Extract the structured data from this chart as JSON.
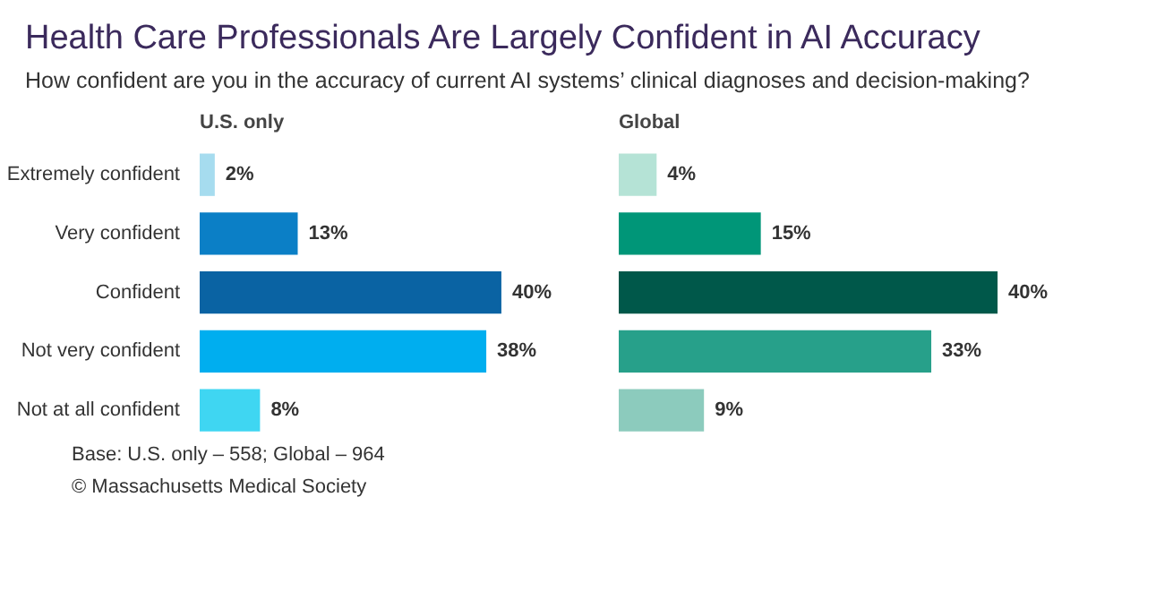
{
  "chart_data": [
    {
      "type": "other",
      "title": "Health Care Professionals Are Largely Confident in AI Accuracy",
      "subtitle": "How confident are you in the accuracy of current AI systems’ clinical diagnoses and decision-making?",
      "annotations": [
        "Base:  U.S. only – 558; Global – 964",
        "© Massachusetts Medical Society"
      ]
    },
    {
      "type": "bar",
      "orientation": "horizontal",
      "title": "U.S. only",
      "categories": [
        "Extremely confident",
        "Very confident",
        "Confident",
        "Not very confident",
        "Not at all confident"
      ],
      "values": [
        2,
        13,
        40,
        38,
        8
      ],
      "value_labels": [
        "2%",
        "13%",
        "40%",
        "38%",
        "8%"
      ],
      "colors": [
        "#a6dcef",
        "#0b7fc6",
        "#0a63a3",
        "#00aeef",
        "#3fd6f2"
      ],
      "tick_labels": "y",
      "grid": false
    },
    {
      "type": "bar",
      "orientation": "horizontal",
      "title": "Global",
      "categories": [
        null,
        null,
        null,
        null,
        null
      ],
      "values": [
        4,
        15,
        40,
        33,
        9
      ],
      "value_labels": [
        "4%",
        "15%",
        "40%",
        "33%",
        "9%"
      ],
      "colors": [
        "#b5e3d6",
        "#009678",
        "#00584a",
        "#27a08a",
        "#8ccbbd"
      ],
      "tick_labels": false,
      "grid": false
    }
  ]
}
